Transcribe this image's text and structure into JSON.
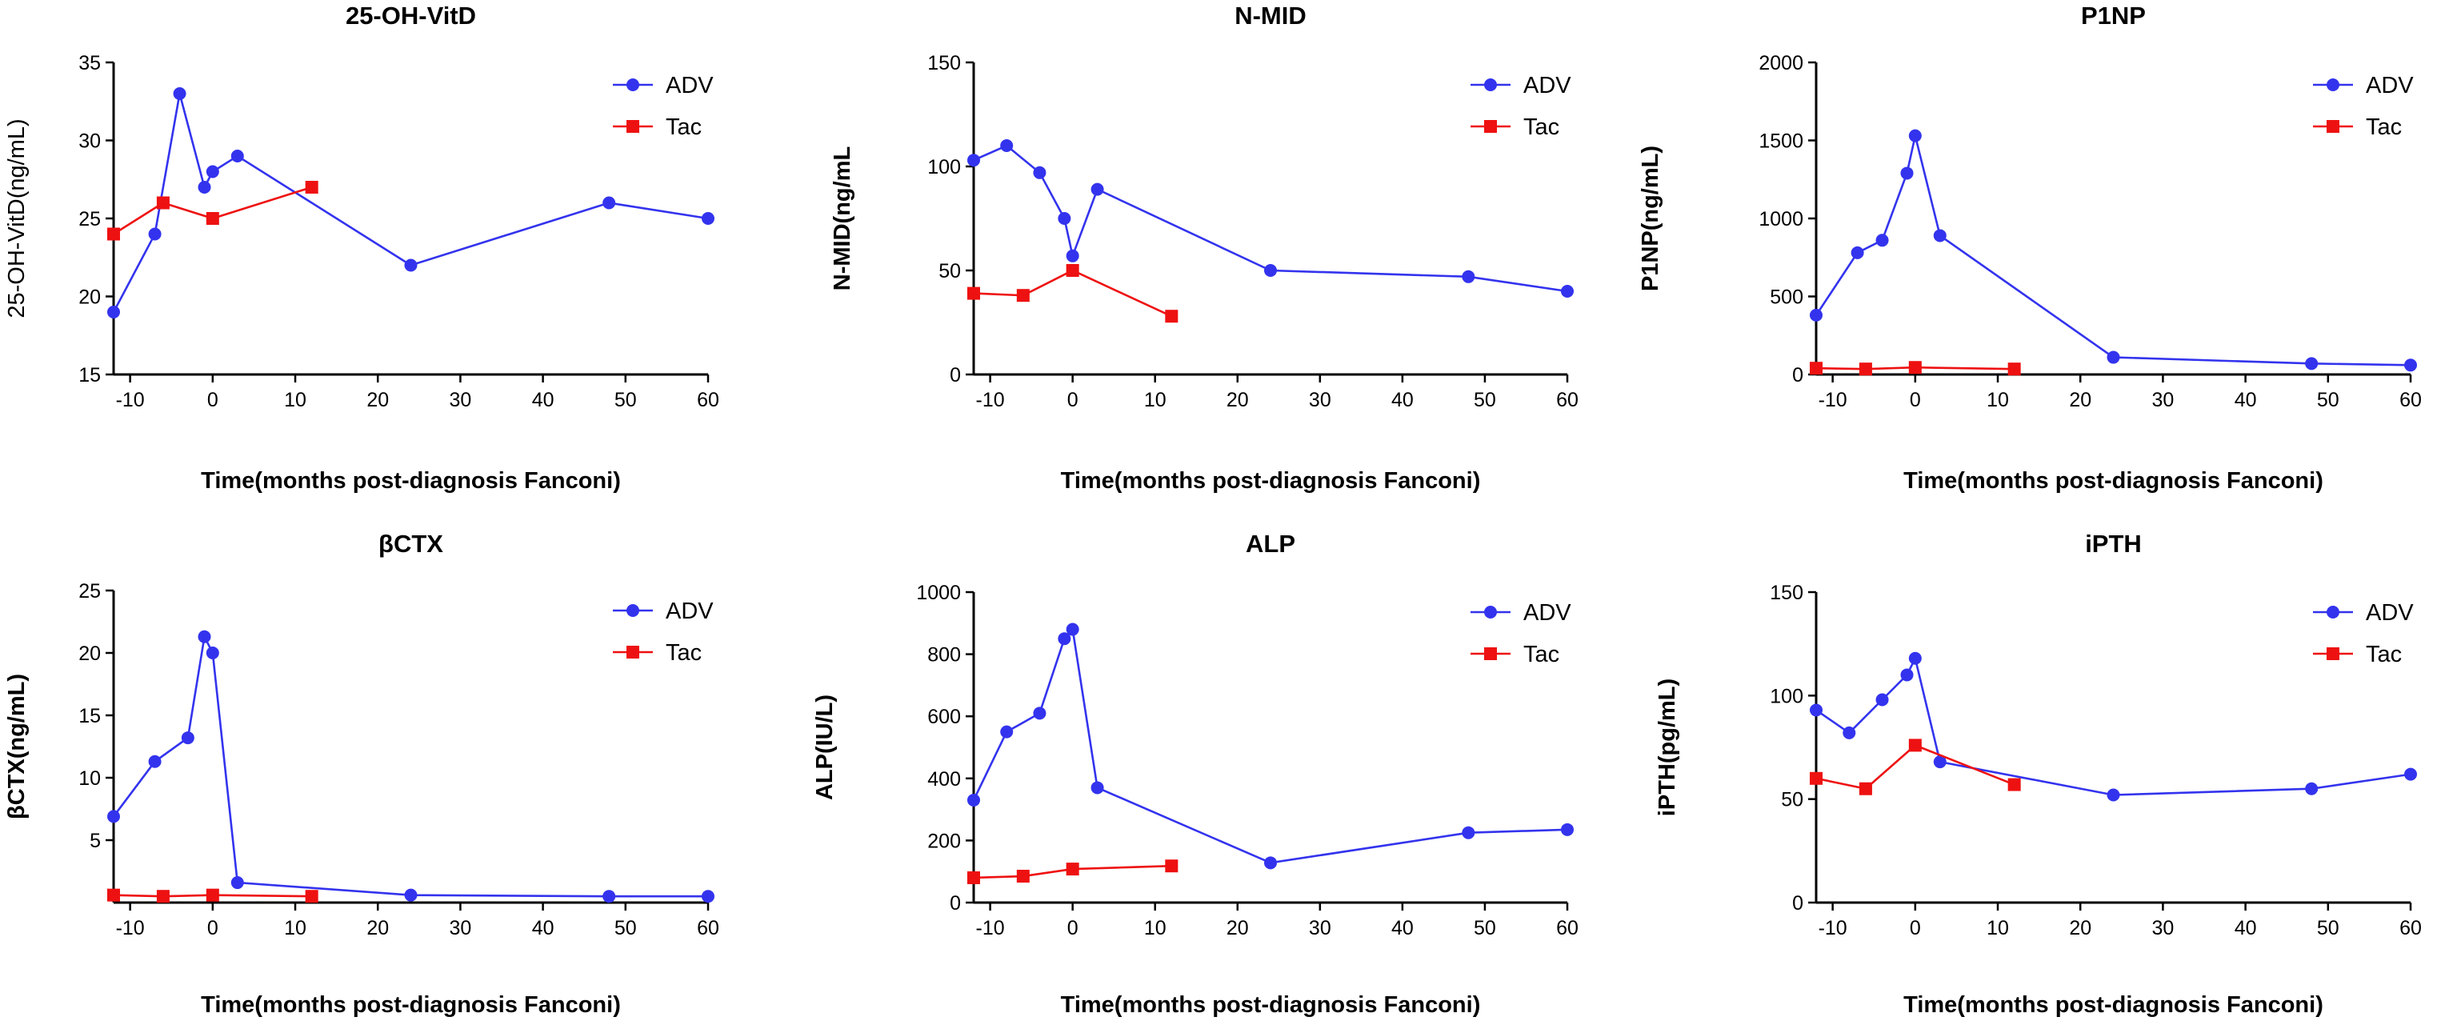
{
  "chart_data": [
    {
      "type": "line",
      "title": "25-OH-VitD",
      "xlabel": "Time(months post-diagnosis Fanconi)",
      "ylabel": "25-OH-VitD(ng/mL)",
      "xlim": [
        -12,
        60
      ],
      "ylim": [
        15,
        35
      ],
      "xticks": [
        -10,
        0,
        10,
        20,
        30,
        40,
        50,
        60
      ],
      "yticks": [
        15,
        20,
        25,
        30,
        35
      ],
      "series": [
        {
          "name": "ADV",
          "color": "#3333ee",
          "marker": "circle",
          "x": [
            -12,
            -7,
            -4,
            -1,
            0,
            3,
            24,
            48,
            60
          ],
          "y": [
            19,
            24,
            33,
            27,
            28,
            29,
            22,
            26,
            25
          ]
        },
        {
          "name": "Tac",
          "color": "#ee1111",
          "marker": "square",
          "x": [
            -12,
            -6,
            0,
            12
          ],
          "y": [
            24,
            26,
            25,
            27
          ]
        }
      ]
    },
    {
      "type": "line",
      "title": "N-MID",
      "xlabel": "Time(months post-diagnosis Fanconi)",
      "ylabel": "N-MID(ng/mL",
      "xlim": [
        -12,
        60
      ],
      "ylim": [
        0,
        150
      ],
      "xticks": [
        -10,
        0,
        10,
        20,
        30,
        40,
        50,
        60
      ],
      "yticks": [
        0,
        50,
        100,
        150
      ],
      "series": [
        {
          "name": "ADV",
          "color": "#3333ee",
          "marker": "circle",
          "x": [
            -12,
            -8,
            -4,
            -1,
            0,
            3,
            24,
            48,
            60
          ],
          "y": [
            103,
            110,
            97,
            75,
            57,
            89,
            50,
            47,
            40
          ]
        },
        {
          "name": "Tac",
          "color": "#ee1111",
          "marker": "square",
          "x": [
            -12,
            -6,
            0,
            12
          ],
          "y": [
            39,
            38,
            50,
            28
          ]
        }
      ]
    },
    {
      "type": "line",
      "title": "P1NP",
      "xlabel": "Time(months post-diagnosis Fanconi)",
      "ylabel": "P1NP(ng/mL)",
      "xlim": [
        -12,
        60
      ],
      "ylim": [
        0,
        2000
      ],
      "xticks": [
        -10,
        0,
        10,
        20,
        30,
        40,
        50,
        60
      ],
      "yticks": [
        0,
        500,
        1000,
        1500,
        2000
      ],
      "series": [
        {
          "name": "ADV",
          "color": "#3333ee",
          "marker": "circle",
          "x": [
            -12,
            -7,
            -4,
            -1,
            0,
            3,
            24,
            48,
            60
          ],
          "y": [
            380,
            780,
            860,
            1290,
            1530,
            890,
            110,
            70,
            60
          ]
        },
        {
          "name": "Tac",
          "color": "#ee1111",
          "marker": "square",
          "x": [
            -12,
            -6,
            0,
            12
          ],
          "y": [
            40,
            35,
            45,
            35
          ]
        }
      ]
    },
    {
      "type": "line",
      "title": "βCTX",
      "xlabel": "Time(months post-diagnosis Fanconi)",
      "ylabel": "βCTX(ng/mL)",
      "xlim": [
        -12,
        60
      ],
      "ylim": [
        0,
        25
      ],
      "xticks": [
        -10,
        0,
        10,
        20,
        30,
        40,
        50,
        60
      ],
      "yticks": [
        5,
        10,
        15,
        20,
        25
      ],
      "series": [
        {
          "name": "ADV",
          "color": "#3333ee",
          "marker": "circle",
          "x": [
            -12,
            -7,
            -3,
            -1,
            0,
            3,
            24,
            48,
            60
          ],
          "y": [
            6.9,
            11.3,
            13.2,
            21.3,
            20.0,
            1.6,
            0.6,
            0.5,
            0.5
          ]
        },
        {
          "name": "Tac",
          "color": "#ee1111",
          "marker": "square",
          "x": [
            -12,
            -6,
            0,
            12
          ],
          "y": [
            0.6,
            0.5,
            0.6,
            0.5
          ]
        }
      ]
    },
    {
      "type": "line",
      "title": "ALP",
      "xlabel": "Time(months post-diagnosis Fanconi)",
      "ylabel": "ALP(IU/L)",
      "xlim": [
        -12,
        60
      ],
      "ylim": [
        0,
        1000
      ],
      "xticks": [
        -10,
        0,
        10,
        20,
        30,
        40,
        50,
        60
      ],
      "yticks": [
        0,
        200,
        400,
        600,
        800,
        1000
      ],
      "series": [
        {
          "name": "ADV",
          "color": "#3333ee",
          "marker": "circle",
          "x": [
            -12,
            -8,
            -4,
            -1,
            0,
            3,
            24,
            48,
            60
          ],
          "y": [
            330,
            550,
            610,
            850,
            880,
            370,
            128,
            225,
            235
          ]
        },
        {
          "name": "Tac",
          "color": "#ee1111",
          "marker": "square",
          "x": [
            -12,
            -6,
            0,
            12
          ],
          "y": [
            80,
            85,
            108,
            118
          ]
        }
      ]
    },
    {
      "type": "line",
      "title": "iPTH",
      "xlabel": "Time(months post-diagnosis Fanconi)",
      "ylabel": "iPTH(pg/mL)",
      "xlim": [
        -12,
        60
      ],
      "ylim": [
        0,
        150
      ],
      "xticks": [
        -10,
        0,
        10,
        20,
        30,
        40,
        50,
        60
      ],
      "yticks": [
        0,
        50,
        100,
        150
      ],
      "series": [
        {
          "name": "ADV",
          "color": "#3333ee",
          "marker": "circle",
          "x": [
            -12,
            -8,
            -4,
            -1,
            0,
            3,
            24,
            48,
            60
          ],
          "y": [
            93,
            82,
            98,
            110,
            118,
            68,
            52,
            55,
            62
          ]
        },
        {
          "name": "Tac",
          "color": "#ee1111",
          "marker": "square",
          "x": [
            -12,
            -6,
            0,
            12
          ],
          "y": [
            60,
            55,
            76,
            57
          ]
        }
      ]
    }
  ]
}
